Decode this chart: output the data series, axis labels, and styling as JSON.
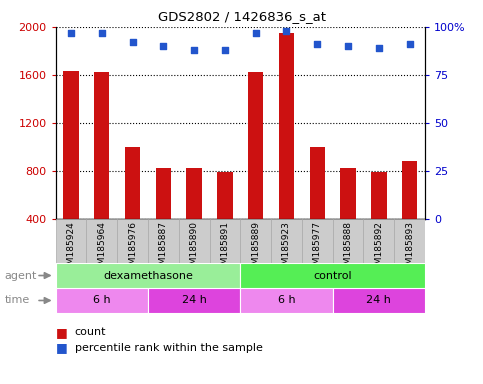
{
  "title": "GDS2802 / 1426836_s_at",
  "samples": [
    "GSM185924",
    "GSM185964",
    "GSM185976",
    "GSM185887",
    "GSM185890",
    "GSM185891",
    "GSM185889",
    "GSM185923",
    "GSM185977",
    "GSM185888",
    "GSM185892",
    "GSM185893"
  ],
  "counts": [
    1630,
    1620,
    1000,
    820,
    820,
    790,
    1620,
    1950,
    1000,
    820,
    790,
    880
  ],
  "percentile_ranks": [
    97,
    97,
    92,
    90,
    88,
    88,
    97,
    98,
    91,
    90,
    89,
    91
  ],
  "ylim_left": [
    400,
    2000
  ],
  "ylim_right": [
    0,
    100
  ],
  "yticks_left": [
    400,
    800,
    1200,
    1600,
    2000
  ],
  "yticks_right": [
    0,
    25,
    50,
    75,
    100
  ],
  "bar_color": "#cc1111",
  "dot_color": "#2255cc",
  "agent_groups": [
    {
      "label": "dexamethasone",
      "start": 0,
      "end": 5,
      "color": "#99ee99"
    },
    {
      "label": "control",
      "start": 6,
      "end": 11,
      "color": "#55ee55"
    }
  ],
  "time_groups": [
    {
      "label": "6 h",
      "start": 0,
      "end": 2,
      "color": "#ee88ee"
    },
    {
      "label": "24 h",
      "start": 3,
      "end": 5,
      "color": "#dd44dd"
    },
    {
      "label": "6 h",
      "start": 6,
      "end": 8,
      "color": "#ee88ee"
    },
    {
      "label": "24 h",
      "start": 9,
      "end": 11,
      "color": "#dd44dd"
    }
  ],
  "ylabel_left_color": "#cc0000",
  "ylabel_right_color": "#0000cc",
  "grid_color": "black",
  "background_color": "#ffffff",
  "bar_width": 0.5,
  "legend_count_label": "count",
  "legend_pct_label": "percentile rank within the sample",
  "xtick_bg_color": "#cccccc",
  "xtick_border_color": "#aaaaaa"
}
